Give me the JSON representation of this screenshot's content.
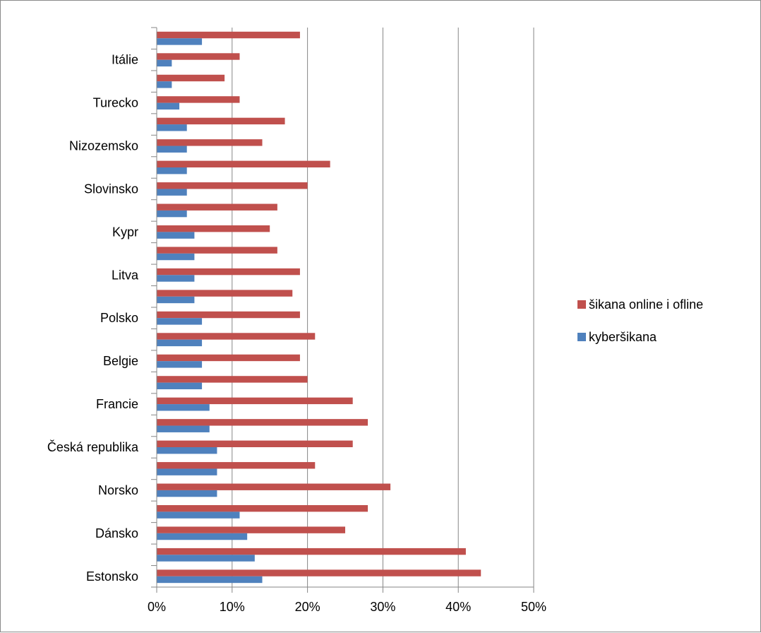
{
  "chart_data": {
    "type": "bar",
    "orientation": "horizontal",
    "categories": [
      "Estonsko",
      "",
      "Dánsko",
      "",
      "Norsko",
      "",
      "Česká republika",
      "",
      "Francie",
      "",
      "Belgie",
      "",
      "Polsko",
      "",
      "Litva",
      "",
      "Kypr",
      "",
      "Slovinsko",
      "",
      "Nizozemsko",
      "",
      "Turecko",
      "",
      "Itálie",
      ""
    ],
    "series": [
      {
        "name": "kyberšikana",
        "color": "#4f81bd",
        "values": [
          14,
          13,
          12,
          11,
          8,
          8,
          8,
          7,
          7,
          6,
          6,
          6,
          6,
          5,
          5,
          5,
          5,
          4,
          4,
          4,
          4,
          4,
          3,
          2,
          2,
          6
        ]
      },
      {
        "name": "šikana online i ofline",
        "color": "#c0504d",
        "values": [
          43,
          41,
          25,
          28,
          31,
          21,
          26,
          28,
          26,
          20,
          19,
          21,
          19,
          18,
          19,
          16,
          15,
          16,
          20,
          23,
          14,
          17,
          11,
          9,
          11,
          19
        ]
      }
    ],
    "xlim": [
      0,
      50
    ],
    "xticks": [
      "0%",
      "10%",
      "20%",
      "30%",
      "40%",
      "50%"
    ],
    "grid": true,
    "legend_position": "right",
    "title": "",
    "xlabel": "",
    "ylabel": ""
  }
}
